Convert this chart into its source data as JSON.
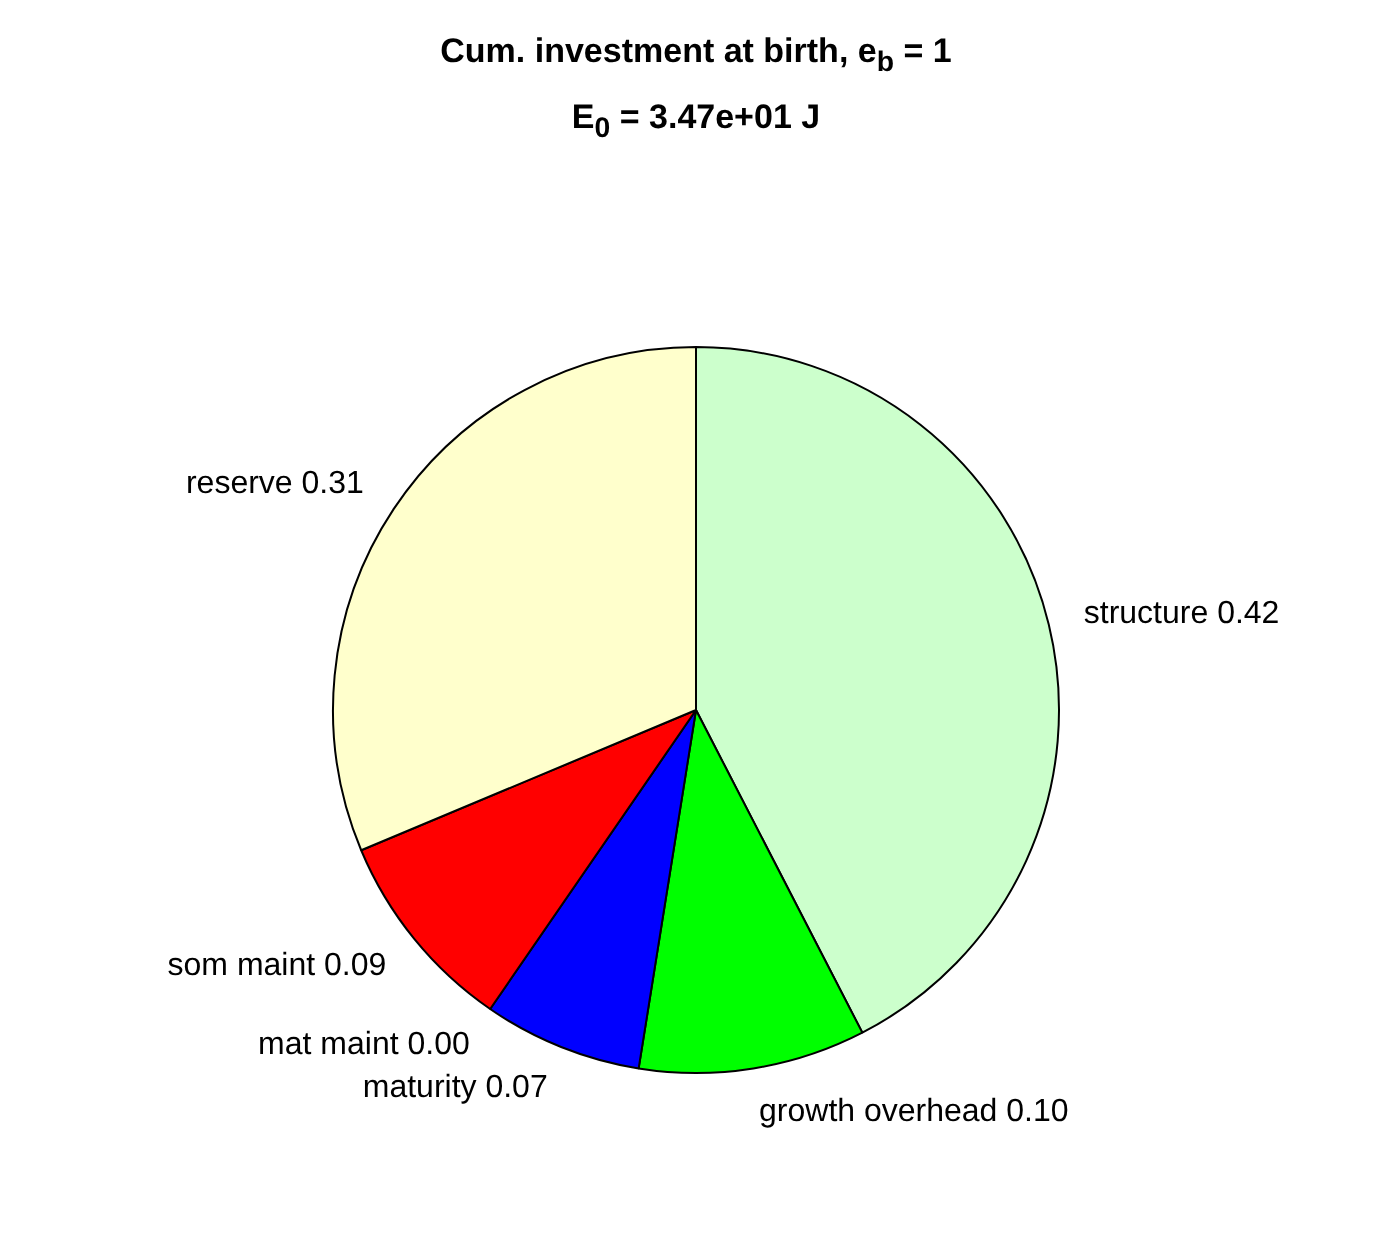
{
  "chart_data": {
    "type": "pie",
    "title": "Cum. investment at birth, e$_{b}$ = 1",
    "subtitle": "E$_{0}$ = 3.47e+01 J",
    "categories": [
      "structure",
      "growth overhead",
      "maturity",
      "mat maint",
      "som maint",
      "reserve"
    ],
    "values": [
      0.42,
      0.1,
      0.07,
      0.0,
      0.09,
      0.31
    ],
    "value_labels": [
      "0.42",
      "0.10",
      "0.07",
      "0.00",
      "0.09",
      "0.31"
    ],
    "colors": [
      "#ccffcc",
      "#00ff00",
      "#0000ff",
      "#000000",
      "#ff0000",
      "#ffffcc"
    ],
    "legend": false
  }
}
